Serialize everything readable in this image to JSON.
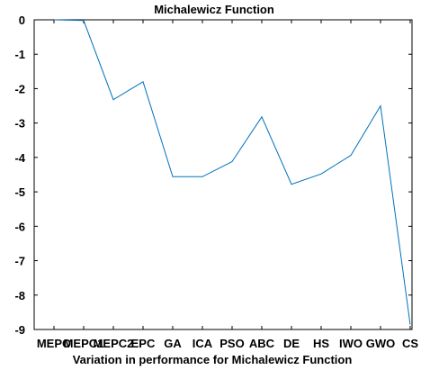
{
  "chart_data": {
    "type": "line",
    "title": "Michalewicz Function",
    "xlabel": "Variation in performance for Michalewicz Function",
    "ylabel": "",
    "categories": [
      "MEPO",
      "MEPC1",
      "MEPC2",
      "EPC",
      "GA",
      "ICA",
      "PSO",
      "ABC",
      "DE",
      "HS",
      "IWO",
      "GWO",
      "CS"
    ],
    "category_labels_shown": [
      "MEPO",
      "MEPC1",
      "MEPC2",
      "EPC",
      "GA",
      "ICA",
      "PSO",
      "ABC",
      "DE",
      "HS",
      "IWO",
      "GWO",
      "CS"
    ],
    "values": [
      0.0,
      -0.02,
      -2.32,
      -1.8,
      -4.56,
      -4.56,
      -4.12,
      -2.82,
      -4.78,
      -4.48,
      -3.94,
      -2.5,
      -8.86
    ],
    "ylim": [
      -9,
      0
    ],
    "yticks": [
      0,
      -1,
      -2,
      -3,
      -4,
      -5,
      -6,
      -7,
      -8,
      -9
    ],
    "line_color": "#0072bd",
    "grid": false,
    "legend": "none"
  }
}
